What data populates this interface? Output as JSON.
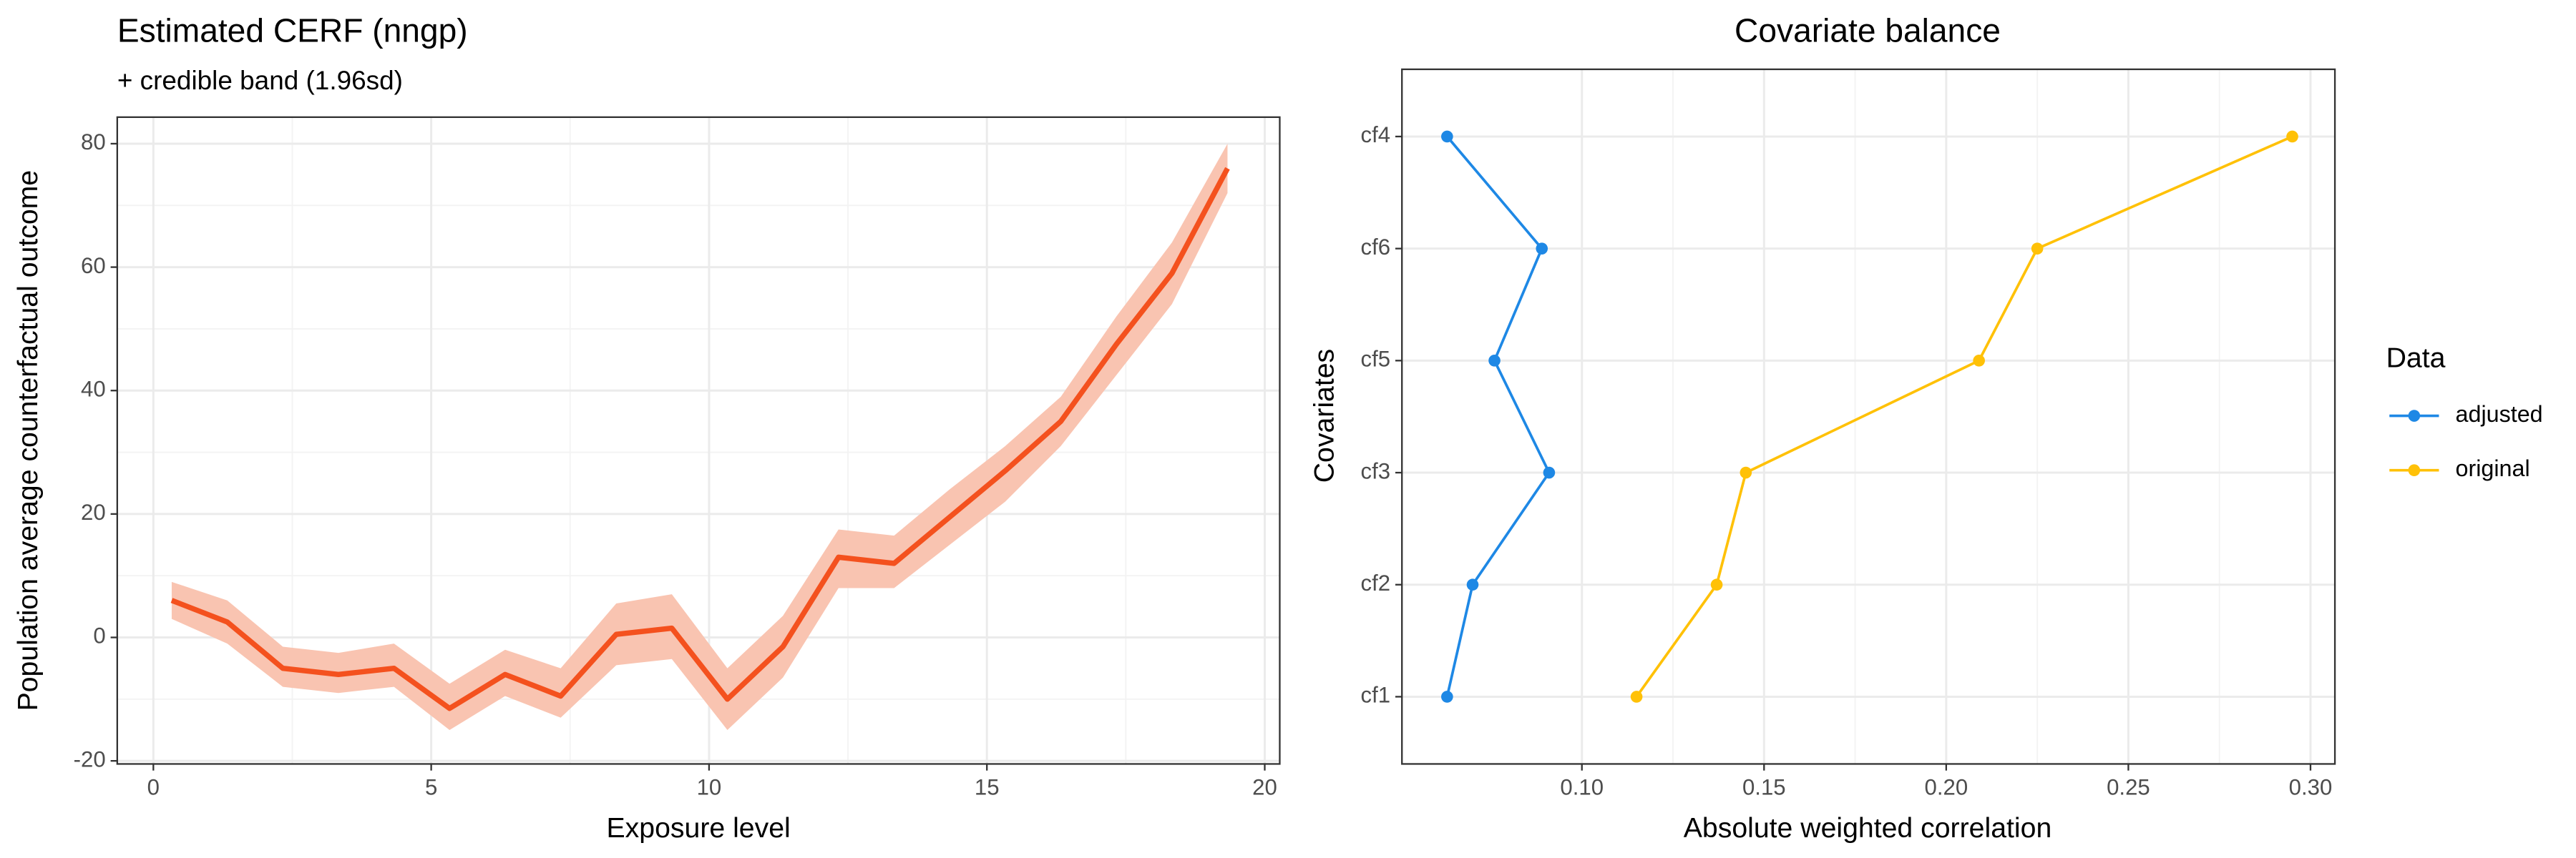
{
  "chart_data": [
    {
      "type": "line",
      "title": "Estimated CERF (nngp)",
      "subtitle": "+ credible band (1.96sd)",
      "x_label": "Exposure level",
      "y_label": "Population average counterfactual outcome",
      "x": [
        0.33,
        1.33,
        2.33,
        3.33,
        4.33,
        5.33,
        6.33,
        7.33,
        8.33,
        9.33,
        10.33,
        11.33,
        12.33,
        13.33,
        14.33,
        15.33,
        16.33,
        17.33,
        18.33,
        19.33
      ],
      "values": [
        6,
        2.5,
        -5,
        -6,
        -5,
        -11.5,
        -6,
        -9.5,
        0.5,
        1.5,
        -10,
        -1.5,
        13,
        12,
        19.5,
        27,
        35,
        47.5,
        59,
        76
      ],
      "color": "#f4511e",
      "band": {
        "lower": [
          3,
          -1,
          -8,
          -9,
          -8,
          -15,
          -9.5,
          -13,
          -4.5,
          -3.5,
          -15,
          -6.5,
          8,
          8,
          15,
          22,
          31,
          42.5,
          54,
          72
        ],
        "upper": [
          9,
          6,
          -1.5,
          -2.5,
          -1,
          -7.5,
          -2,
          -5,
          5.5,
          7,
          -5,
          3.5,
          17.5,
          16.5,
          24,
          31,
          39,
          52,
          64,
          80
        ],
        "color": "#f9c4b1"
      },
      "xlim": [
        -0.65,
        20.27
      ],
      "xticks": [
        0,
        5,
        10,
        15,
        20
      ],
      "ylim": [
        -20.5,
        84.3
      ],
      "yticks": [
        -20,
        0,
        20,
        40,
        60,
        80
      ],
      "grid": true
    },
    {
      "type": "line",
      "orientation": "horizontal",
      "markers": true,
      "title": "Covariate balance",
      "x_label": "Absolute weighted correlation",
      "y_label": "Covariates",
      "categories": [
        "cf1",
        "cf2",
        "cf3",
        "cf5",
        "cf6",
        "cf4"
      ],
      "series": [
        {
          "name": "adjusted",
          "color": "#1e88e5",
          "values": [
            0.063,
            0.07,
            0.091,
            0.076,
            0.089,
            0.063
          ]
        },
        {
          "name": "original",
          "color": "#ffc107",
          "values": [
            0.115,
            0.137,
            0.145,
            0.209,
            0.225,
            0.295
          ]
        }
      ],
      "xlim": [
        0.0506,
        0.3067
      ],
      "xticks": [
        {
          "value": 0.1,
          "label": "0.10"
        },
        0.15,
        {
          "value": 0.2,
          "label": "0.20"
        },
        0.25,
        {
          "value": 0.3,
          "label": "0.30"
        }
      ],
      "legend_title": "Data",
      "legend": "right",
      "grid": true
    }
  ]
}
